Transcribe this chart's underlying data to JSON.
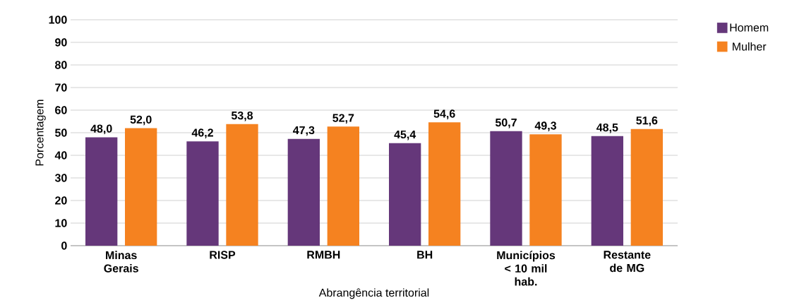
{
  "chart_data": {
    "type": "bar",
    "xlabel": "Abrangência territorial",
    "ylabel": "Porcentagem",
    "categories": [
      "Minas Gerais",
      "RISP",
      "RMBH",
      "BH",
      "Municípios < 10 mil hab.",
      "Restante de MG"
    ],
    "series": [
      {
        "name": "Homem",
        "color": "#65377a",
        "values": [
          48.0,
          46.2,
          47.3,
          45.4,
          50.7,
          48.5
        ],
        "value_labels": [
          "48,0",
          "46,2",
          "47,3",
          "45,4",
          "50,7",
          "48,5"
        ]
      },
      {
        "name": "Mulher",
        "color": "#f58220",
        "values": [
          52.0,
          53.8,
          52.7,
          54.6,
          49.3,
          51.6
        ],
        "value_labels": [
          "52,0",
          "53,8",
          "52,7",
          "54,6",
          "49,3",
          "51,6"
        ]
      }
    ],
    "ylim": [
      0,
      100
    ],
    "yticks": [
      0,
      10,
      20,
      30,
      40,
      50,
      60,
      70,
      80,
      90,
      100
    ],
    "grid": "y",
    "legend": "top right"
  }
}
